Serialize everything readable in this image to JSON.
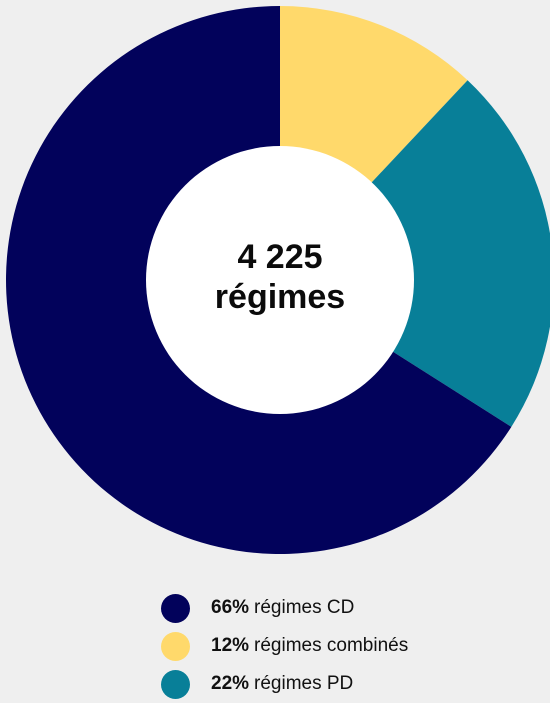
{
  "chart_data": {
    "type": "pie",
    "center_label": {
      "line1": "4 225",
      "line2": "régimes"
    },
    "slices": [
      {
        "percent_label": "66%",
        "name": "régimes CD",
        "value": 66,
        "color": "#02025b"
      },
      {
        "percent_label": "12%",
        "name": "régimes combinés",
        "value": 12,
        "color": "#ffd96b"
      },
      {
        "percent_label": "22%",
        "name": "régimes PD",
        "value": 22,
        "color": "#087f98"
      }
    ],
    "draw_order": [
      1,
      2,
      0
    ],
    "start_angle_deg": 0,
    "donut": true,
    "legend_position": "bottom"
  }
}
